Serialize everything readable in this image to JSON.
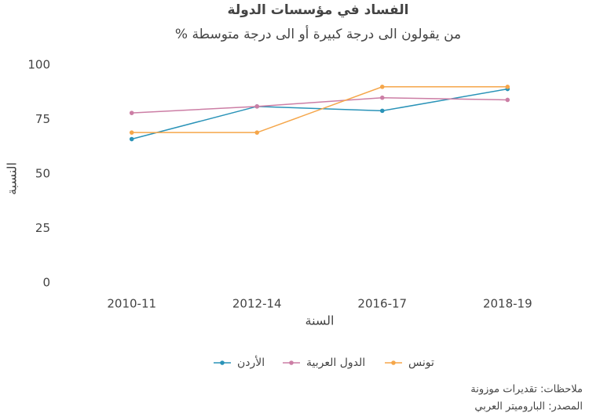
{
  "chart_data": {
    "type": "line",
    "title": "الفساد في مؤسسات الدولة",
    "subtitle": "% من يقولون الى درجة كبيرة أو الى درجة متوسطة",
    "x_label": "السنة",
    "y_label": "النسبة",
    "categories": [
      "2010-11",
      "2012-14",
      "2016-17",
      "2018-19"
    ],
    "series": [
      {
        "name": "الأردن",
        "color": "#2a93b8",
        "values": [
          66,
          81,
          79,
          89
        ]
      },
      {
        "name": "الدول العربية",
        "color": "#cc7ea5",
        "values": [
          78,
          81,
          85,
          84
        ]
      },
      {
        "name": "تونس",
        "color": "#f5a64a",
        "values": [
          69,
          69,
          90,
          90
        ]
      }
    ],
    "ylim": [
      0,
      100
    ],
    "yticks": [
      0,
      25,
      50,
      75,
      100
    ],
    "grid": false,
    "legend": "bottom",
    "notes": [
      "ملاحظات: تقديرات موزونة",
      "المصدر: الباروميتر العربي"
    ]
  }
}
